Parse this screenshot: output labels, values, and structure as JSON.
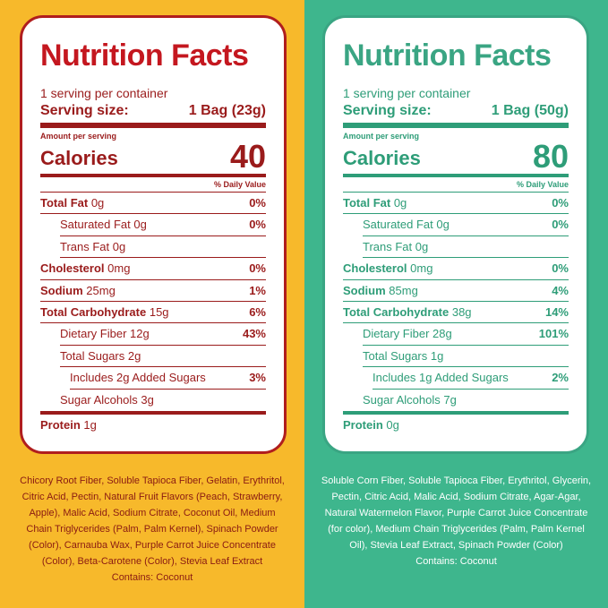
{
  "left": {
    "title": "Nutrition Facts",
    "servings": "1 serving per container",
    "serving_size_label": "Serving size:",
    "serving_size_value": "1 Bag (23g)",
    "amount_per_serving": "Amount per serving",
    "calories_label": "Calories",
    "calories_value": "40",
    "daily_value_header": "% Daily Value",
    "rows": [
      {
        "label": "Total Fat",
        "amount": "0g",
        "pct": "0%"
      },
      {
        "label": "Saturated Fat",
        "amount": "0g",
        "pct": "0%"
      },
      {
        "label": "Trans Fat",
        "amount": "0g",
        "pct": ""
      },
      {
        "label": "Cholesterol",
        "amount": "0mg",
        "pct": "0%"
      },
      {
        "label": "Sodium",
        "amount": "25mg",
        "pct": "1%"
      },
      {
        "label": "Total Carbohydrate",
        "amount": "15g",
        "pct": "6%"
      },
      {
        "label": "Dietary Fiber",
        "amount": "12g",
        "pct": "43%"
      },
      {
        "label": "Total Sugars",
        "amount": "2g",
        "pct": ""
      },
      {
        "label": "Includes 2g Added Sugars",
        "amount": "",
        "pct": "3%"
      },
      {
        "label": "Sugar Alcohols",
        "amount": "3g",
        "pct": ""
      },
      {
        "label": "Protein",
        "amount": "1g",
        "pct": ""
      }
    ],
    "ingredients": "Chicory Root Fiber, Soluble Tapioca Fiber, Gelatin, Erythritol, Citric Acid, Pectin, Natural Fruit Flavors (Peach, Strawberry, Apple), Malic Acid, Sodium Citrate, Coconut Oil, Medium Chain Triglycerides (Palm, Palm Kernel), Spinach Powder (Color), Carnauba Wax, Purple Carrot Juice Concentrate (Color), Beta-Carotene (Color), Stevia Leaf Extract",
    "contains": "Contains: Coconut"
  },
  "right": {
    "title": "Nutrition Facts",
    "servings": "1 serving per container",
    "serving_size_label": "Serving size:",
    "serving_size_value": "1 Bag (50g)",
    "amount_per_serving": "Amount per serving",
    "calories_label": "Calories",
    "calories_value": "80",
    "daily_value_header": "% Daily Value",
    "rows": [
      {
        "label": "Total Fat",
        "amount": "0g",
        "pct": "0%"
      },
      {
        "label": "Saturated Fat",
        "amount": "0g",
        "pct": "0%"
      },
      {
        "label": "Trans Fat",
        "amount": "0g",
        "pct": ""
      },
      {
        "label": "Cholesterol",
        "amount": "0mg",
        "pct": "0%"
      },
      {
        "label": "Sodium",
        "amount": "85mg",
        "pct": "4%"
      },
      {
        "label": "Total Carbohydrate",
        "amount": "38g",
        "pct": "14%"
      },
      {
        "label": "Dietary Fiber",
        "amount": "28g",
        "pct": "101%"
      },
      {
        "label": "Total Sugars",
        "amount": "1g",
        "pct": ""
      },
      {
        "label": "Includes 1g Added Sugars",
        "amount": "",
        "pct": "2%"
      },
      {
        "label": "Sugar Alcohols",
        "amount": "7g",
        "pct": ""
      },
      {
        "label": "Protein",
        "amount": "0g",
        "pct": ""
      }
    ],
    "ingredients": "Soluble Corn Fiber, Soluble Tapioca Fiber, Erythritol, Glycerin, Pectin, Citric Acid, Malic Acid, Sodium Citrate, Agar-Agar, Natural Watermelon Flavor, Purple Carrot Juice Concentrate (for color), Medium Chain Triglycerides (Palm, Palm Kernel Oil), Stevia Leaf Extract, Spinach Powder (Color)",
    "contains": "Contains: Coconut"
  },
  "colors": {
    "left_bg": "#f7b92b",
    "left_accent": "#c4171f",
    "right_bg": "#3eb68d",
    "right_accent": "#3aa583"
  }
}
